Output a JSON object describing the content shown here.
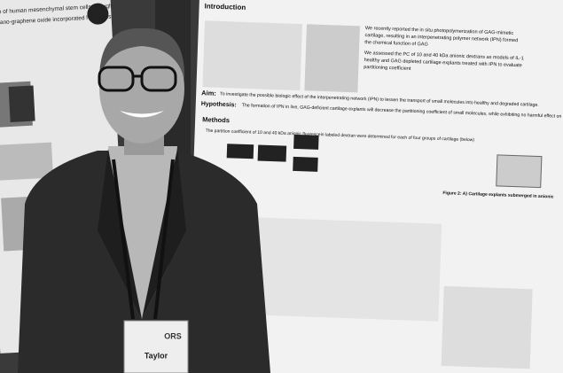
{
  "left_poster": {
    "title": "ration of human mesenchymal stem cells through",
    "subtitle": "hin nano-graphene oxide incorporated hydrogels"
  },
  "right_poster": {
    "introduction": "Introduction",
    "bullets": [
      "We recently reported the in situ photopolymerization of GAG-mimetic",
      "cartilage, resulting in an interpenetrating polymer network (IPN) formed",
      "the chemical function of GAG",
      "We assessed the PC of 10 and 40 kDa anionic dextrans as models of IL-1",
      "healthy and GAG depleted cartilage explants treated with IPN to evaluate",
      "partitioning coefficient"
    ],
    "aim_label": "Aim:",
    "aim_text": "To investigate the possible biologic effect of the interpenetrating network (IPN) to lessen the transport of small molecules into healthy and degraded cartilage.",
    "hypothesis_label": "Hypothesis:",
    "hypothesis_text": "The formation of IPN in live, GAG-deficient cartilage explants will decrease the partitioning coefficient of small molecules, while exhibiting no harmful effect on chon",
    "methods": "Methods",
    "methods_text": "The partition coefficient of 10 and 40 kDa anionic fluorescein labeled dextran were determined for each of four groups of cartilage (below)",
    "figure_caption": "Figure 2: A) Cartilage explants submerged in anionic"
  },
  "badge": {
    "logo": "ORS",
    "name": "Taylor"
  }
}
